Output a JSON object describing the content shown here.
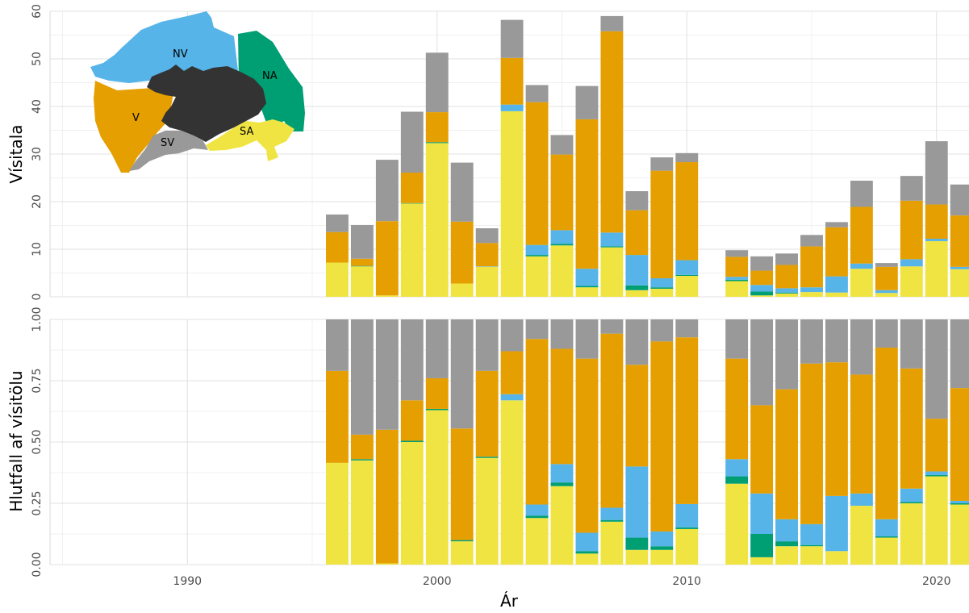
{
  "chart_data": [
    {
      "type": "bar",
      "stacked": true,
      "ylabel": "Vísitala",
      "xlabel": "",
      "ylim": [
        0,
        60
      ],
      "yticks": [
        "0",
        "10",
        "20",
        "30",
        "40",
        "50",
        "60"
      ],
      "xlim": [
        1984.5,
        2021.3
      ],
      "xticks": [
        "1990",
        "2000",
        "2010",
        "2020"
      ],
      "grid": true,
      "legend": "none",
      "categories": [
        1996,
        1997,
        1998,
        1999,
        2000,
        2001,
        2002,
        2003,
        2004,
        2005,
        2006,
        2007,
        2008,
        2009,
        2010,
        2012,
        2013,
        2014,
        2015,
        2016,
        2017,
        2018,
        2019,
        2020,
        2021
      ],
      "series": [
        {
          "region": "SA",
          "color": "#F0E442",
          "values": [
            7.2,
            6.4,
            0.3,
            19.6,
            32.3,
            2.8,
            6.3,
            39.0,
            8.5,
            10.8,
            2.0,
            10.4,
            1.4,
            1.7,
            4.4,
            3.3,
            0.3,
            0.7,
            1.0,
            0.9,
            5.9,
            0.8,
            6.4,
            11.7,
            5.8
          ]
        },
        {
          "region": "NA",
          "color": "#009E73",
          "values": [
            0.0,
            0.1,
            0.0,
            0.1,
            0.2,
            0.0,
            0.0,
            0.0,
            0.3,
            0.3,
            0.3,
            0.2,
            1.0,
            0.3,
            0.2,
            0.3,
            0.8,
            0.2,
            0.0,
            0.0,
            0.0,
            0.0,
            0.0,
            0.0,
            0.0
          ]
        },
        {
          "region": "NV",
          "color": "#56B4E9",
          "values": [
            0.0,
            0.0,
            0.0,
            0.0,
            0.0,
            0.0,
            0.1,
            1.4,
            2.1,
            2.9,
            3.6,
            2.9,
            6.4,
            1.9,
            3.1,
            0.6,
            1.4,
            0.9,
            1.0,
            3.4,
            1.1,
            0.6,
            1.5,
            0.5,
            0.5
          ]
        },
        {
          "region": "V",
          "color": "#E69F00",
          "values": [
            6.4,
            1.5,
            15.6,
            6.4,
            6.3,
            13.0,
            4.9,
            9.8,
            30.0,
            15.9,
            31.4,
            42.3,
            9.4,
            22.6,
            20.6,
            4.2,
            3.0,
            4.9,
            8.6,
            10.3,
            11.9,
            4.9,
            12.3,
            7.2,
            10.8
          ]
        },
        {
          "region": "SV",
          "color": "#999999",
          "values": [
            3.7,
            7.1,
            12.9,
            12.8,
            12.5,
            12.4,
            3.1,
            8.0,
            3.6,
            4.1,
            7.0,
            3.2,
            4.0,
            2.8,
            1.9,
            1.4,
            3.0,
            2.4,
            2.4,
            1.1,
            5.5,
            0.8,
            5.2,
            13.3,
            6.5
          ]
        }
      ]
    },
    {
      "type": "bar",
      "stacked": true,
      "ylabel": "Hlutfall af vísitölu",
      "xlabel": "Ár",
      "ylim": [
        0,
        1
      ],
      "yticks": [
        "0.00",
        "0.25",
        "0.50",
        "0.75",
        "1.00"
      ],
      "xlim": [
        1984.5,
        2021.3
      ],
      "xticks": [
        "1990",
        "2000",
        "2010",
        "2020"
      ],
      "grid": true,
      "legend": "none",
      "categories": [
        1996,
        1997,
        1998,
        1999,
        2000,
        2001,
        2002,
        2003,
        2004,
        2005,
        2006,
        2007,
        2008,
        2009,
        2010,
        2012,
        2013,
        2014,
        2015,
        2016,
        2017,
        2018,
        2019,
        2020,
        2021
      ],
      "series": [
        {
          "region": "SA",
          "color": "#F0E442",
          "values": [
            0.415,
            0.425,
            0.005,
            0.5,
            0.63,
            0.095,
            0.435,
            0.67,
            0.19,
            0.32,
            0.045,
            0.175,
            0.06,
            0.06,
            0.145,
            0.33,
            0.03,
            0.075,
            0.075,
            0.055,
            0.24,
            0.11,
            0.25,
            0.36,
            0.245
          ]
        },
        {
          "region": "NA",
          "color": "#009E73",
          "values": [
            0.0,
            0.005,
            0.0,
            0.005,
            0.005,
            0.005,
            0.005,
            0.0,
            0.01,
            0.015,
            0.01,
            0.007,
            0.05,
            0.015,
            0.007,
            0.03,
            0.095,
            0.02,
            0.005,
            0.0,
            0.0,
            0.005,
            0.005,
            0.005,
            0.005
          ]
        },
        {
          "region": "NV",
          "color": "#56B4E9",
          "values": [
            0.0,
            0.0,
            0.0,
            0.0,
            0.0,
            0.0,
            0.0,
            0.025,
            0.045,
            0.075,
            0.075,
            0.05,
            0.29,
            0.06,
            0.095,
            0.07,
            0.165,
            0.09,
            0.085,
            0.225,
            0.05,
            0.07,
            0.055,
            0.015,
            0.01
          ]
        },
        {
          "region": "V",
          "color": "#E69F00",
          "values": [
            0.375,
            0.1,
            0.545,
            0.165,
            0.125,
            0.455,
            0.35,
            0.175,
            0.675,
            0.47,
            0.71,
            0.71,
            0.415,
            0.775,
            0.68,
            0.41,
            0.36,
            0.53,
            0.655,
            0.545,
            0.485,
            0.7,
            0.49,
            0.215,
            0.46
          ]
        },
        {
          "region": "SV",
          "color": "#999999",
          "values": [
            0.21,
            0.47,
            0.45,
            0.33,
            0.24,
            0.445,
            0.21,
            0.13,
            0.08,
            0.12,
            0.16,
            0.058,
            0.185,
            0.09,
            0.073,
            0.16,
            0.35,
            0.285,
            0.18,
            0.175,
            0.225,
            0.115,
            0.2,
            0.405,
            0.28
          ]
        }
      ]
    }
  ],
  "inset_map": {
    "labels": [
      "NV",
      "NA",
      "V",
      "SV",
      "SA"
    ],
    "colors": {
      "NV": "#56B4E9",
      "NA": "#009E73",
      "V": "#E69F00",
      "SV": "#999999",
      "SA": "#F0E442",
      "land": "#333333"
    }
  }
}
